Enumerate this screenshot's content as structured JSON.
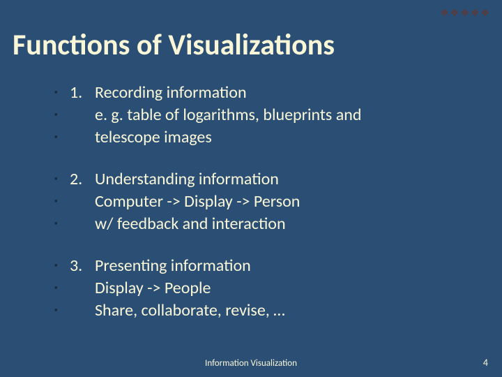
{
  "colors": {
    "background": "#2b4e74",
    "text": "#f9f7d8",
    "bullet": "#1a2a3a",
    "deco": "#5a3a3a"
  },
  "typography": {
    "title_fontsize": 42,
    "body_fontsize": 24,
    "footer_fontsize": 13,
    "font_family": "Calibri"
  },
  "deco": "❖❖❖❖❖",
  "title": "Functions of Visualizations",
  "groups": [
    {
      "rows": [
        {
          "num": "1.",
          "text": "Recording information"
        },
        {
          "num": "",
          "text": "e. g. table of logarithms, blueprints and"
        },
        {
          "num": "",
          "text": "telescope images"
        }
      ]
    },
    {
      "rows": [
        {
          "num": "2.",
          "text": "Understanding information"
        },
        {
          "num": "",
          "text": "Computer -> Display -> Person"
        },
        {
          "num": "",
          "text": "w/ feedback and interaction"
        }
      ]
    },
    {
      "rows": [
        {
          "num": "3.",
          "text": "Presenting information"
        },
        {
          "num": "",
          "text": "Display -> People"
        },
        {
          "num": "",
          "text": "Share, collaborate, revise, …"
        }
      ]
    }
  ],
  "footer": "Information Visualization",
  "page_num": "4",
  "bullet_char": "▪"
}
